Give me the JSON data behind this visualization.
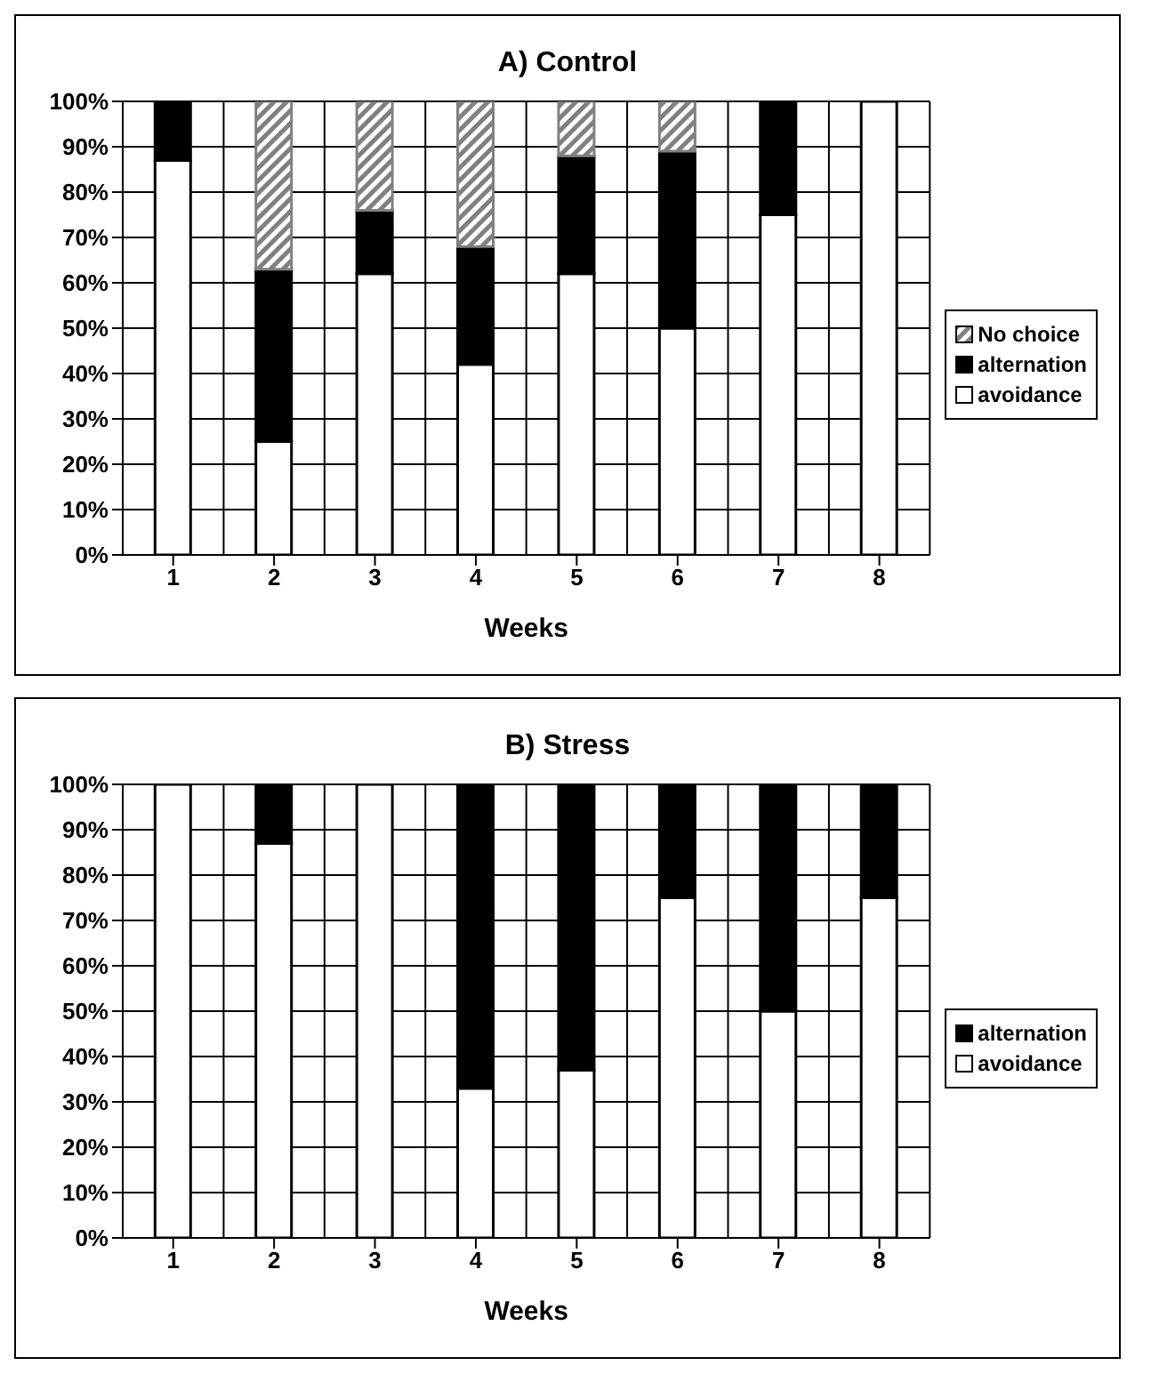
{
  "chart_data": [
    {
      "type": "bar",
      "title": "A) Control",
      "xlabel": "Weeks",
      "categories": [
        "1",
        "2",
        "3",
        "4",
        "5",
        "6",
        "7",
        "8"
      ],
      "stacked": true,
      "ylim": [
        0,
        100
      ],
      "yticks": [
        {
          "value": 0,
          "label": "0%"
        },
        {
          "value": 10,
          "label": "10%"
        },
        {
          "value": 20,
          "label": "20%"
        },
        {
          "value": 30,
          "label": "30%"
        },
        {
          "value": 40,
          "label": "40%"
        },
        {
          "value": 50,
          "label": "50%"
        },
        {
          "value": 60,
          "label": "60%"
        },
        {
          "value": 70,
          "label": "70%"
        },
        {
          "value": 80,
          "label": "80%"
        },
        {
          "value": 90,
          "label": "90%"
        },
        {
          "value": 100,
          "label": "100%"
        }
      ],
      "grid": true,
      "legend": "right",
      "series": [
        {
          "name": "avoidance",
          "color": "#ffffff",
          "values": [
            87,
            25,
            62,
            42,
            62,
            50,
            75,
            100
          ]
        },
        {
          "name": "alternation",
          "color": "#000000",
          "values": [
            13,
            38,
            14,
            26,
            26,
            39,
            25,
            0
          ]
        },
        {
          "name": "No choice",
          "color": "#808080",
          "values": [
            0,
            37,
            24,
            32,
            12,
            11,
            0,
            0
          ]
        }
      ]
    },
    {
      "type": "bar",
      "title": "B) Stress",
      "xlabel": "Weeks",
      "categories": [
        "1",
        "2",
        "3",
        "4",
        "5",
        "6",
        "7",
        "8"
      ],
      "stacked": true,
      "ylim": [
        0,
        100
      ],
      "yticks": [
        {
          "value": 0,
          "label": "0%"
        },
        {
          "value": 10,
          "label": "10%"
        },
        {
          "value": 20,
          "label": "20%"
        },
        {
          "value": 30,
          "label": "30%"
        },
        {
          "value": 40,
          "label": "40%"
        },
        {
          "value": 50,
          "label": "50%"
        },
        {
          "value": 60,
          "label": "60%"
        },
        {
          "value": 70,
          "label": "70%"
        },
        {
          "value": 80,
          "label": "80%"
        },
        {
          "value": 90,
          "label": "90%"
        },
        {
          "value": 100,
          "label": "100%"
        }
      ],
      "grid": true,
      "legend": "right",
      "series": [
        {
          "name": "avoidance",
          "color": "#ffffff",
          "values": [
            100,
            87,
            100,
            33,
            37,
            75,
            50,
            75
          ]
        },
        {
          "name": "alternation",
          "color": "#000000",
          "values": [
            0,
            13,
            0,
            67,
            63,
            25,
            50,
            25
          ]
        }
      ]
    }
  ]
}
